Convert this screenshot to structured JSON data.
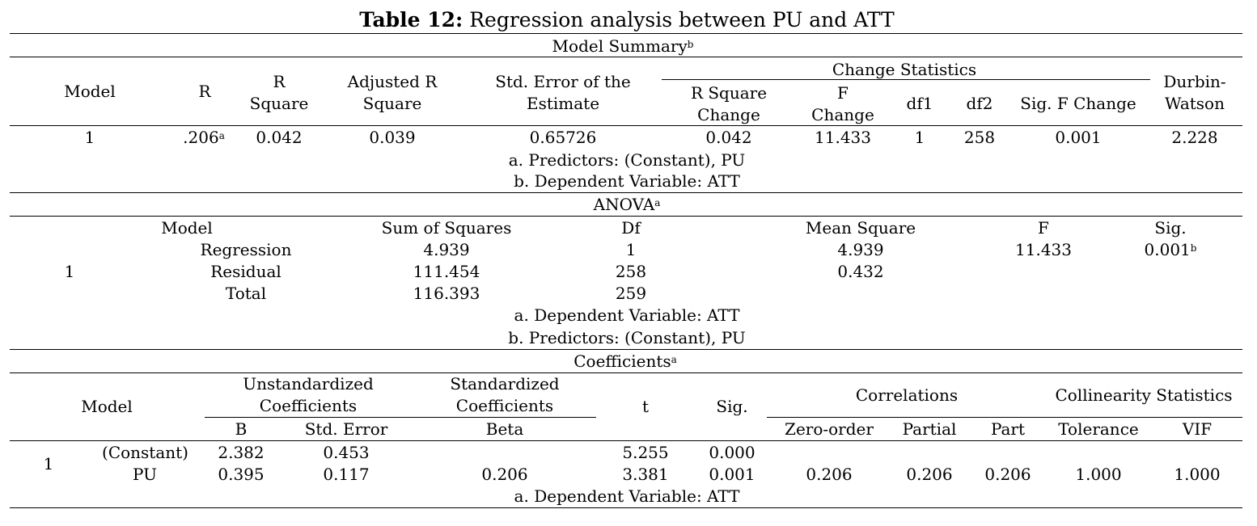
{
  "title": {
    "label": "Table 12:",
    "text": " Regression analysis between PU and ATT"
  },
  "model_summary": {
    "heading": "Model Summary",
    "heading_sup": "b",
    "change_statistics": "Change Statistics",
    "headers": {
      "model": "Model",
      "r": "R",
      "r_square_1": "R",
      "r_square_2": "Square",
      "adj_1": "Adjusted R",
      "adj_2": "Square",
      "sterr_1": "Std. Error of the",
      "sterr_2": "Estimate",
      "rsc_1": "R Square",
      "rsc_2": "Change",
      "fc_1": "F",
      "fc_2": "Change",
      "df1": "df1",
      "df2": "df2",
      "sigf": "Sig. F Change",
      "dw_1": "Durbin-",
      "dw_2": "Watson"
    },
    "row": {
      "model": "1",
      "r": ".206",
      "r_sup": "a",
      "r_square": "0.042",
      "adj_r_square": "0.039",
      "std_error": "0.65726",
      "r_square_change": "0.042",
      "f_change": "11.433",
      "df1": "1",
      "df2": "258",
      "sig_f_change": "0.001",
      "durbin_watson": "2.228"
    },
    "notes": [
      "a. Predictors: (Constant), PU",
      "b. Dependent Variable: ATT"
    ]
  },
  "anova": {
    "heading": "ANOVA",
    "heading_sup": "a",
    "headers": {
      "model": "Model",
      "ss": "Sum of Squares",
      "df": "Df",
      "ms": "Mean Square",
      "f": "F",
      "sig": "Sig."
    },
    "model_num": "1",
    "rows": [
      {
        "label": "Regression",
        "ss": "4.939",
        "df": "1",
        "ms": "4.939",
        "f": "11.433",
        "sig": "0.001",
        "sig_sup": "b"
      },
      {
        "label": "Residual",
        "ss": "111.454",
        "df": "258",
        "ms": "0.432"
      },
      {
        "label": "Total",
        "ss": "116.393",
        "df": "259"
      }
    ],
    "notes": [
      "a. Dependent Variable: ATT",
      "b. Predictors: (Constant), PU"
    ]
  },
  "coefficients": {
    "heading": "Coefficients",
    "heading_sup": "a",
    "headers": {
      "model": "Model",
      "unstd_1": "Unstandardized",
      "unstd_2": "Coefficients",
      "std_1": "Standardized",
      "std_2": "Coefficients",
      "t": "t",
      "sig": "Sig.",
      "correlations": "Correlations",
      "collinearity": "Collinearity Statistics",
      "b": "B",
      "std_error": "Std. Error",
      "beta": "Beta",
      "zero_order": "Zero-order",
      "partial": "Partial",
      "part": "Part",
      "tolerance": "Tolerance",
      "vif": "VIF"
    },
    "model_num": "1",
    "rows": [
      {
        "label": "(Constant)",
        "b": "2.382",
        "se": "0.453",
        "t": "5.255",
        "sig": "0.000"
      },
      {
        "label": "PU",
        "b": "0.395",
        "se": "0.117",
        "beta": "0.206",
        "t": "3.381",
        "sig": "0.001",
        "zero_order": "0.206",
        "partial": "0.206",
        "part": "0.206",
        "tolerance": "1.000",
        "vif": "1.000"
      }
    ],
    "notes": [
      "a. Dependent Variable: ATT"
    ]
  }
}
